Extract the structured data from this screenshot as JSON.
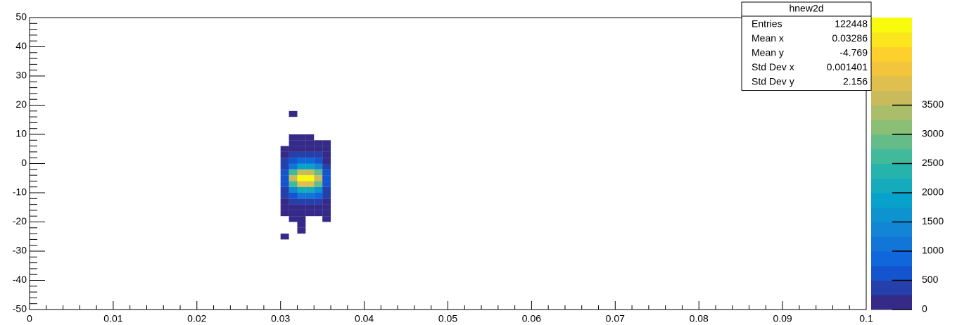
{
  "chart_data": {
    "type": "heatmap",
    "x_edges": [
      0.03,
      0.031,
      0.032,
      0.033,
      0.034,
      0.035,
      0.036
    ],
    "y_edges": [
      -26,
      -24,
      -22,
      -20,
      -18,
      -16,
      -14,
      -12,
      -10,
      -8,
      -6,
      -4,
      -2,
      0,
      2,
      4,
      6,
      8,
      10,
      12,
      14,
      16,
      18
    ],
    "z": [
      [
        5,
        0,
        0,
        0,
        0,
        0
      ],
      [
        0,
        0,
        5,
        0,
        0,
        0
      ],
      [
        0,
        0,
        10,
        0,
        0,
        0
      ],
      [
        0,
        10,
        10,
        0,
        0,
        10
      ],
      [
        20,
        40,
        50,
        50,
        40,
        20
      ],
      [
        60,
        120,
        150,
        150,
        120,
        50
      ],
      [
        150,
        300,
        450,
        450,
        350,
        120
      ],
      [
        250,
        700,
        1000,
        1000,
        800,
        250
      ],
      [
        400,
        1400,
        2000,
        2000,
        1500,
        400
      ],
      [
        600,
        2700,
        3800,
        3800,
        2900,
        600
      ],
      [
        700,
        3500,
        4900,
        4800,
        3600,
        700
      ],
      [
        600,
        2500,
        3600,
        3700,
        2800,
        600
      ],
      [
        400,
        1200,
        1800,
        1800,
        1400,
        400
      ],
      [
        250,
        600,
        900,
        900,
        700,
        200
      ],
      [
        150,
        300,
        400,
        400,
        300,
        100
      ],
      [
        60,
        80,
        80,
        80,
        60,
        40
      ],
      [
        0,
        30,
        40,
        40,
        30,
        30
      ],
      [
        0,
        20,
        20,
        20,
        0,
        0
      ],
      [
        0,
        0,
        0,
        0,
        0,
        0
      ],
      [
        0,
        0,
        0,
        0,
        0,
        0
      ],
      [
        0,
        0,
        0,
        0,
        0,
        0
      ],
      [
        0,
        5,
        0,
        0,
        0,
        0
      ]
    ],
    "xlim": [
      0,
      0.1
    ],
    "xticks": [
      0,
      0.01,
      0.02,
      0.03,
      0.04,
      0.05,
      0.06,
      0.07,
      0.08,
      0.09,
      0.1
    ],
    "ylim": [
      -50,
      50
    ],
    "yticks": [
      -50,
      -40,
      -30,
      -20,
      -10,
      0,
      10,
      20,
      30,
      40,
      50
    ],
    "zlim": [
      0,
      5000
    ],
    "zticks": [
      0,
      500,
      1000,
      1500,
      2000,
      2500,
      3000,
      3500
    ],
    "contours": 20,
    "palette": [
      "#352a87",
      "#0f5cdd",
      "#1481d6",
      "#06a4ca",
      "#2eb7a4",
      "#87bf77",
      "#d1bb59",
      "#fec832",
      "#f9fb0e"
    ],
    "stats": {
      "title": "hnew2d",
      "rows": [
        {
          "label": "Entries",
          "value": 122448
        },
        {
          "label": "Mean x",
          "value": 0.03286
        },
        {
          "label": "Mean y",
          "value": -4.769
        },
        {
          "label": "Std Dev x",
          "value": 0.001401
        },
        {
          "label": "Std Dev y",
          "value": 2.156
        }
      ]
    }
  }
}
